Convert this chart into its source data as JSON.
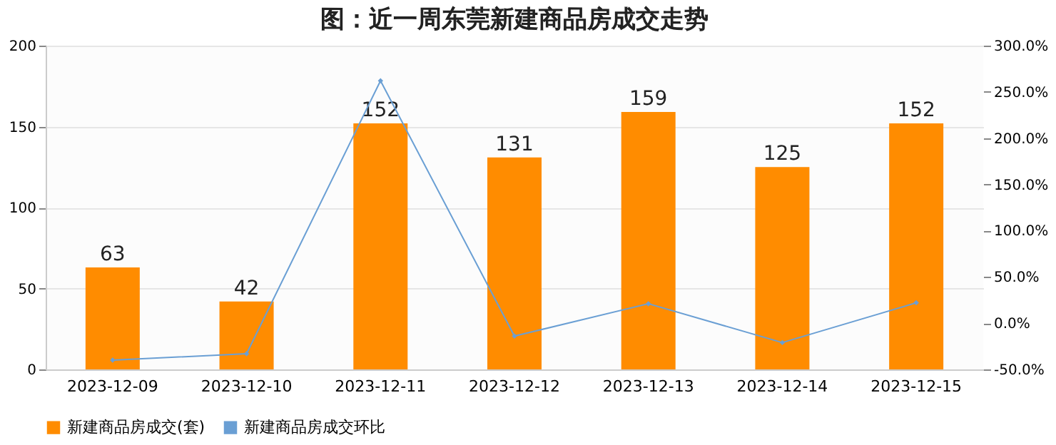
{
  "chart_data": {
    "type": "bar",
    "title": "图：近一周东莞新建商品房成交走势",
    "categories": [
      "2023-12-09",
      "2023-12-10",
      "2023-12-11",
      "2023-12-12",
      "2023-12-13",
      "2023-12-14",
      "2023-12-15"
    ],
    "series": [
      {
        "name": "新建商品房成交(套)",
        "color": "#ff8c00",
        "values": [
          63,
          42,
          152,
          131,
          159,
          125,
          152
        ],
        "value_labels": [
          "63",
          "42",
          "152",
          "131",
          "159",
          "125",
          "152"
        ]
      },
      {
        "name": "新建商品房成交环比",
        "type": "line",
        "axis": "y2",
        "color": "#6a9fd4",
        "marker": "diamond",
        "values": [
          -40,
          -33,
          262,
          -14,
          21,
          -21,
          22
        ]
      }
    ],
    "ylim": [
      0,
      200
    ],
    "yticks": [
      0,
      50,
      100,
      150,
      200
    ],
    "y2lim": [
      -50,
      300
    ],
    "y2ticks": [
      {
        "value": -50,
        "label": "-50.0%"
      },
      {
        "value": 0,
        "label": "0.0%"
      },
      {
        "value": 50,
        "label": "50.0%"
      },
      {
        "value": 100,
        "label": "100.0%"
      },
      {
        "value": 150,
        "label": "150.0%"
      },
      {
        "value": 200,
        "label": "200.0%"
      },
      {
        "value": 250,
        "label": "250.0%"
      },
      {
        "value": 300,
        "label": "300.0%"
      }
    ],
    "grid": "y",
    "legend": "bottom"
  }
}
